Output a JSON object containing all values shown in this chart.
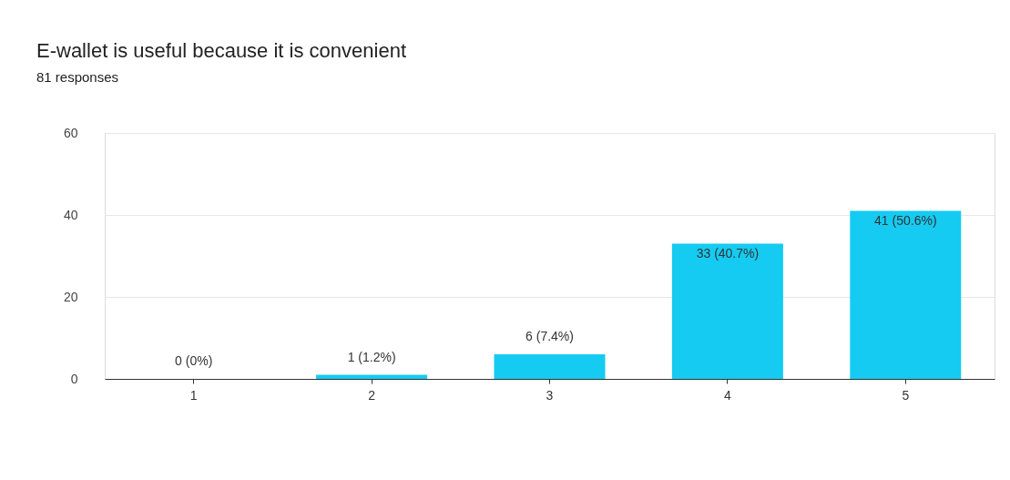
{
  "chart_data": {
    "type": "bar",
    "title": "E-wallet is useful because it is convenient",
    "subtitle": "81 responses",
    "categories": [
      "1",
      "2",
      "3",
      "4",
      "5"
    ],
    "values": [
      0,
      1,
      6,
      33,
      41
    ],
    "value_labels": [
      "0 (0%)",
      "1 (1.2%)",
      "6 (7.4%)",
      "33 (40.7%)",
      "41 (50.6%)"
    ],
    "color": "#15cbf2",
    "ylim": [
      0,
      60
    ],
    "yticks": [
      0,
      20,
      40,
      60
    ],
    "grid": "y"
  }
}
